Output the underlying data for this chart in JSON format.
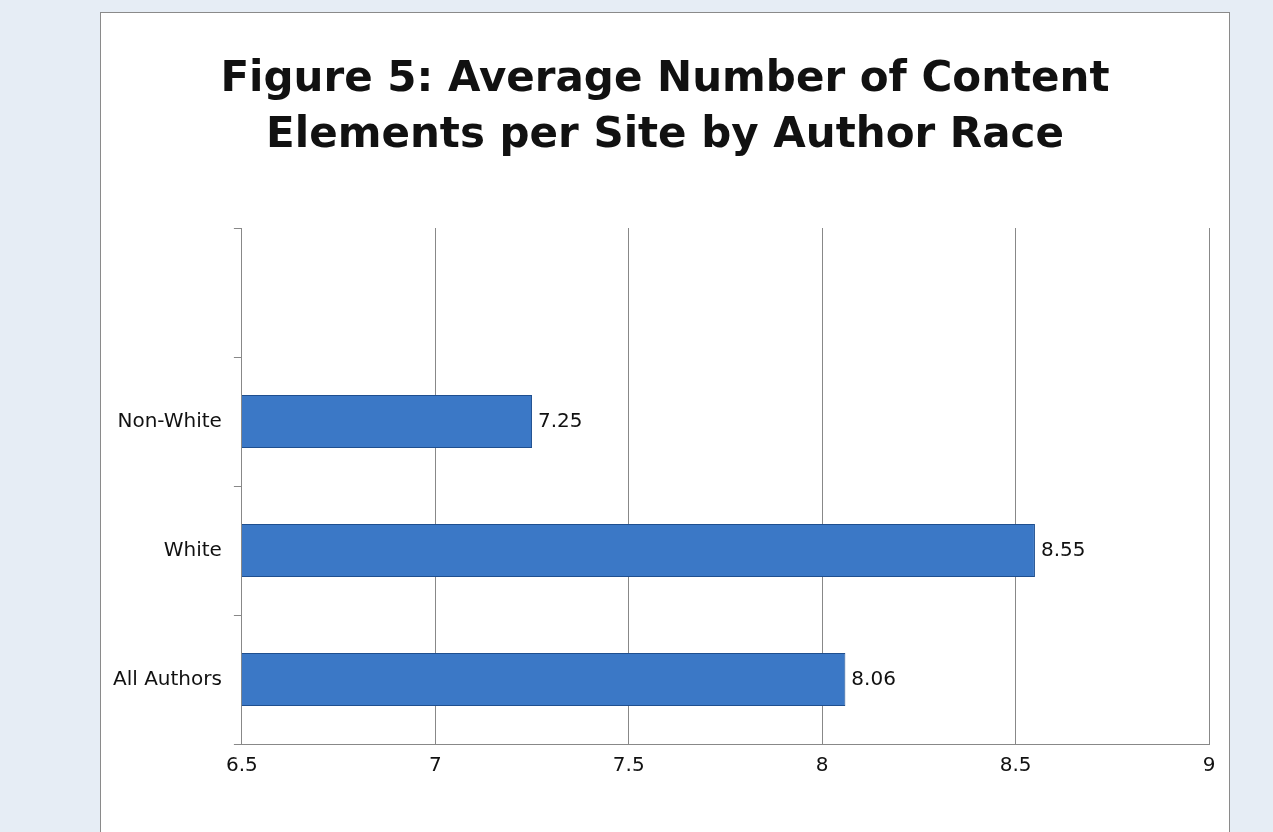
{
  "chart_data": {
    "type": "bar",
    "title": "Figure 5: Average Number of Content Elements per Site by Author Race",
    "orientation": "horizontal",
    "categories": [
      null,
      "Non-White",
      "White",
      "All Authors"
    ],
    "values": [
      null,
      7.25,
      8.55,
      8.06
    ],
    "color": "#3b78c6",
    "xlim": [
      6.5,
      9
    ],
    "xticks": [
      6.5,
      7,
      7.5,
      8,
      8.5,
      9
    ],
    "grid": "x",
    "data_labels": true
  }
}
